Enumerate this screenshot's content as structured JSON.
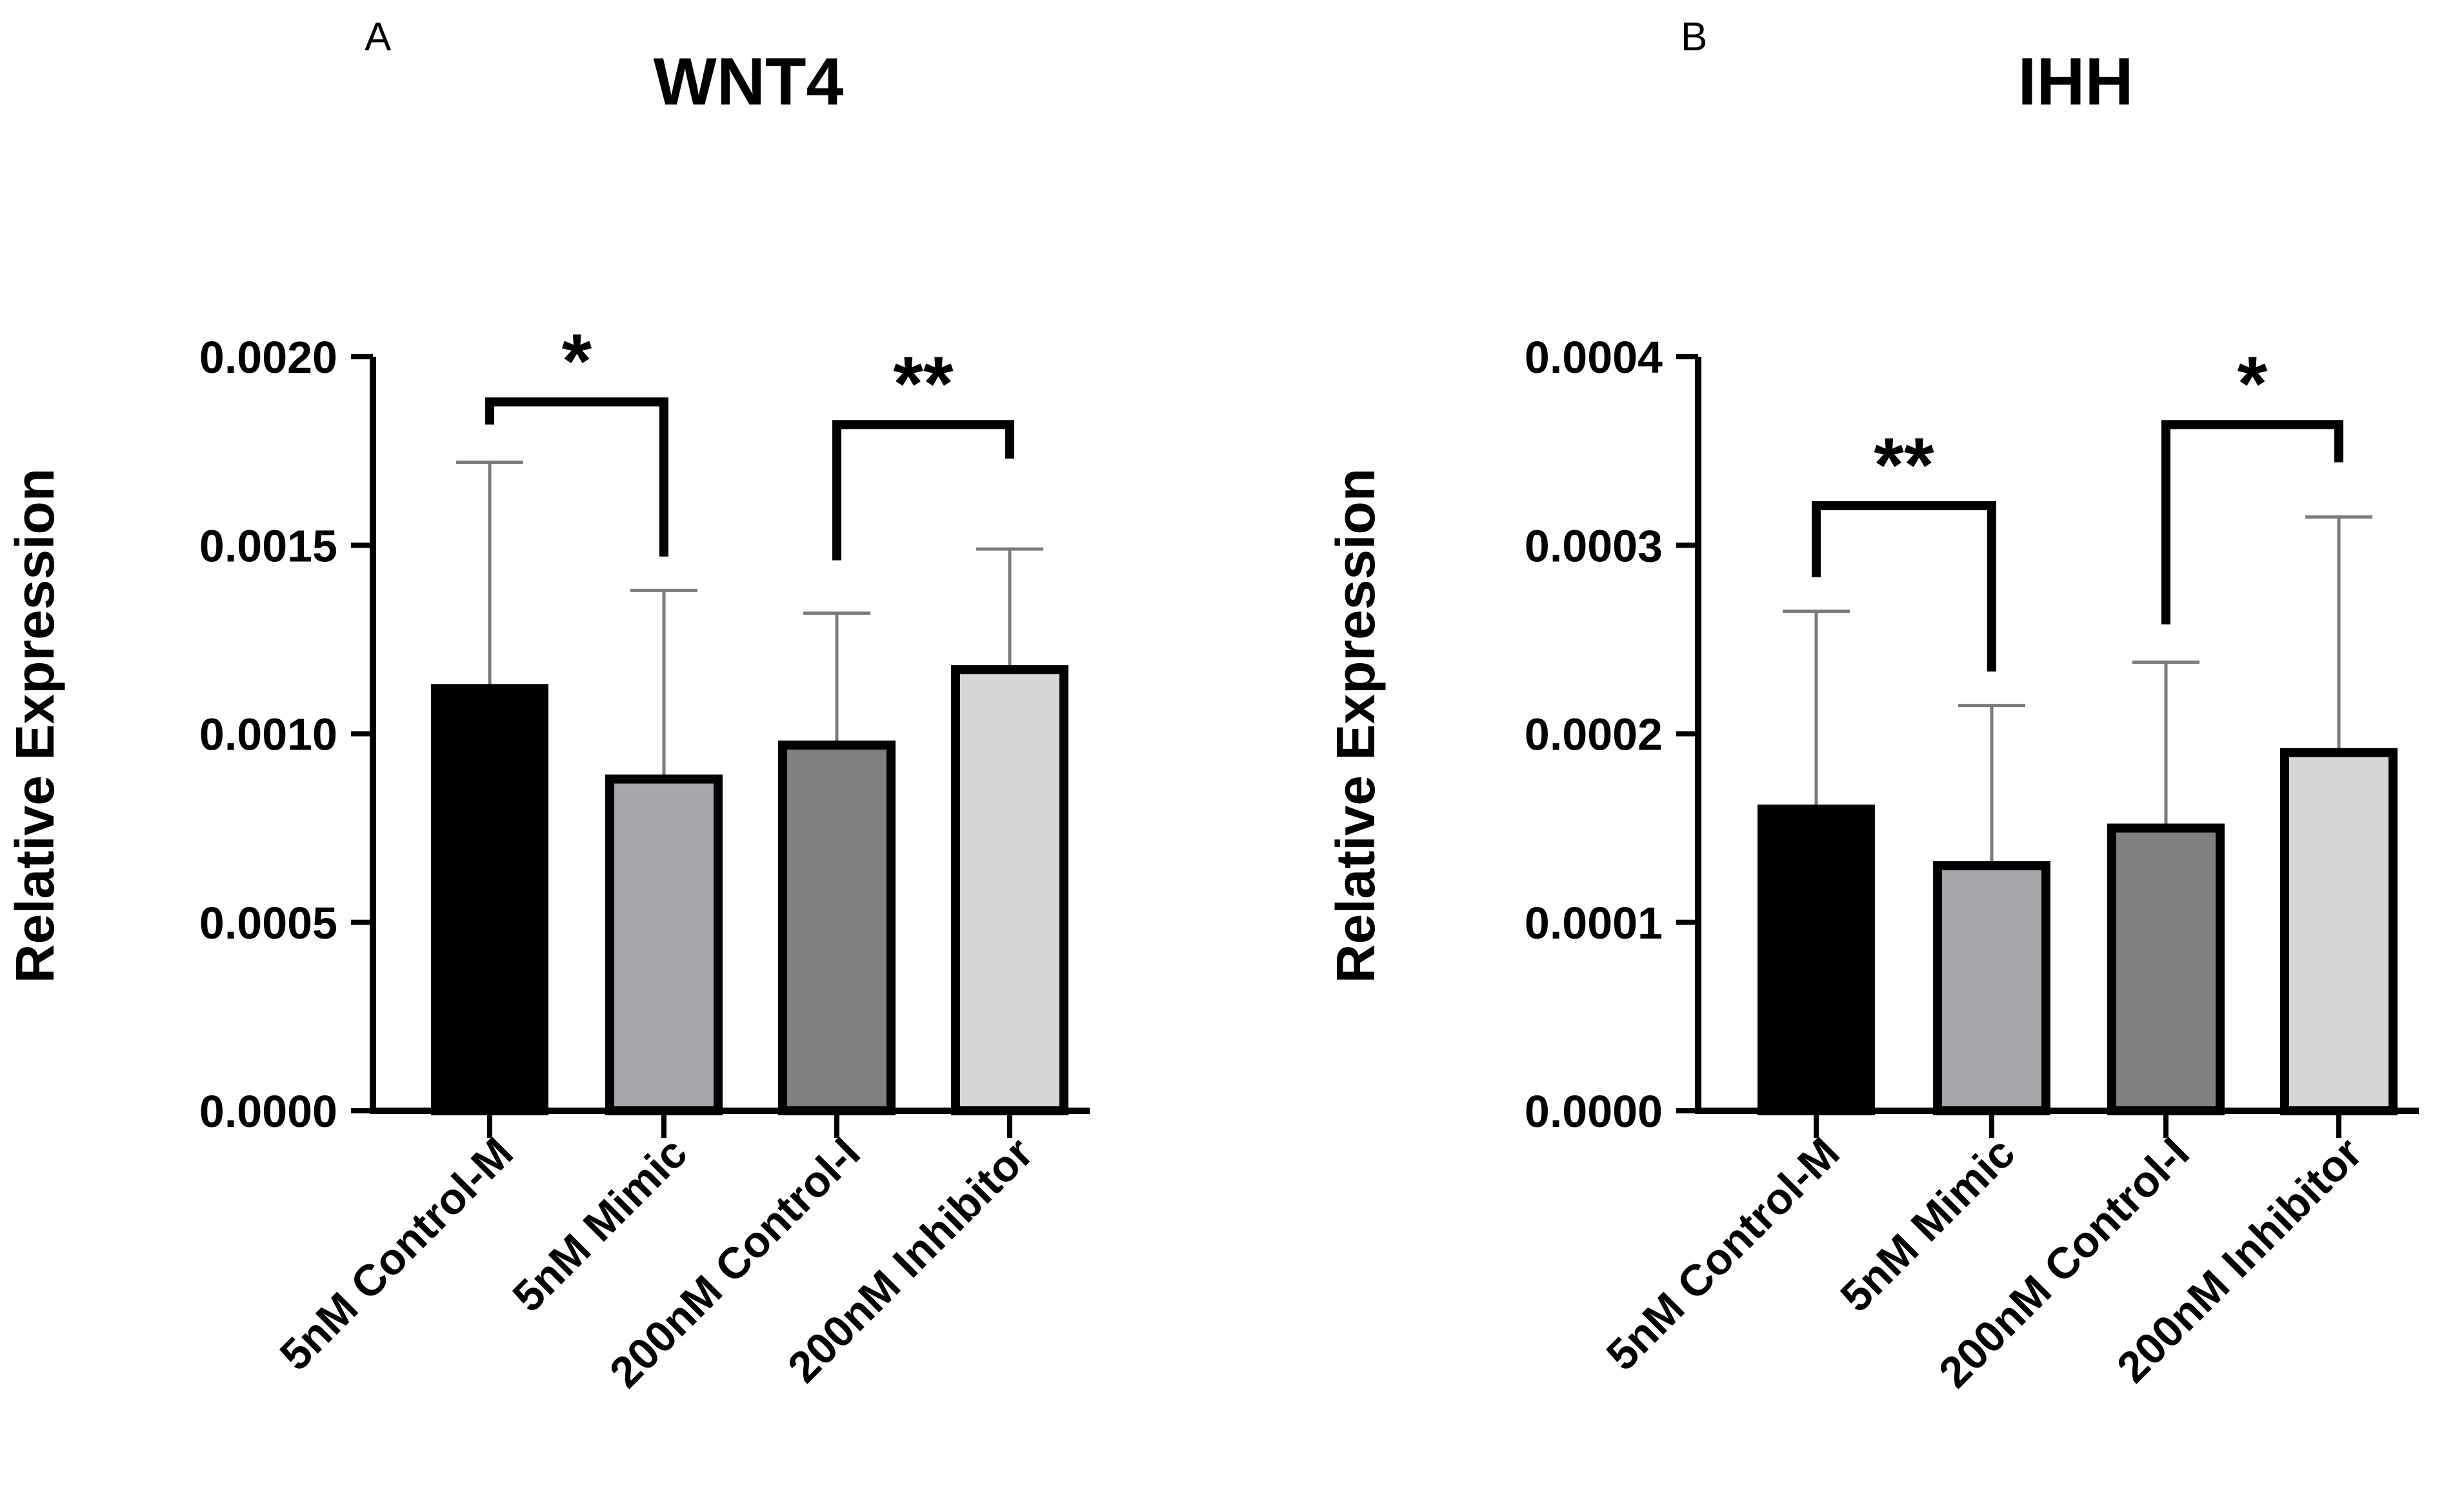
{
  "chart_data": [
    {
      "type": "bar",
      "panel": "A",
      "title": "WNT4",
      "xlabel": "",
      "ylabel": "Relative Expression",
      "ylim": [
        0,
        0.002
      ],
      "yticks": [
        "0.0000",
        "0.0005",
        "0.0010",
        "0.0015",
        "0.0020"
      ],
      "categories": [
        "5nM Control-M",
        "5nM Mimic",
        "200nM Control-I",
        "200nM Inhibitor"
      ],
      "values": [
        0.00112,
        0.00088,
        0.00097,
        0.00117
      ],
      "errors": [
        0.0006,
        0.0005,
        0.00035,
        0.00032
      ],
      "colors": [
        "#000000",
        "#a7a6ab",
        "#7f7f7f",
        "#d6d6d6"
      ],
      "significance": [
        {
          "from": 0,
          "to": 1,
          "label": "*",
          "y": 0.00188,
          "left_drop": 0.00182,
          "right_drop": 0.00147
        },
        {
          "from": 2,
          "to": 3,
          "label": "**",
          "y": 0.00182,
          "left_drop": 0.00146,
          "right_drop": 0.00173
        }
      ]
    },
    {
      "type": "bar",
      "panel": "B",
      "title": "IHH",
      "xlabel": "",
      "ylabel": "Relative Expression",
      "ylim": [
        0,
        0.0004
      ],
      "yticks": [
        "0.0000",
        "0.0001",
        "0.0002",
        "0.0003",
        "0.0004"
      ],
      "categories": [
        "5nM Control-M",
        "5nM Mimic",
        "200nM Control-I",
        "200nM Inhibitor"
      ],
      "values": [
        0.00016,
        0.00013,
        0.00015,
        0.00019
      ],
      "errors": [
        0.000105,
        8.5e-05,
        8.8e-05,
        0.000125
      ],
      "colors": [
        "#000000",
        "#a7a6ab",
        "#7f7f7f",
        "#d6d6d6"
      ],
      "significance": [
        {
          "from": 0,
          "to": 1,
          "label": "**",
          "y": 0.000321,
          "left_drop": 0.000283,
          "right_drop": 0.000233
        },
        {
          "from": 2,
          "to": 3,
          "label": "*",
          "y": 0.000364,
          "left_drop": 0.000258,
          "right_drop": 0.000344
        }
      ]
    }
  ]
}
